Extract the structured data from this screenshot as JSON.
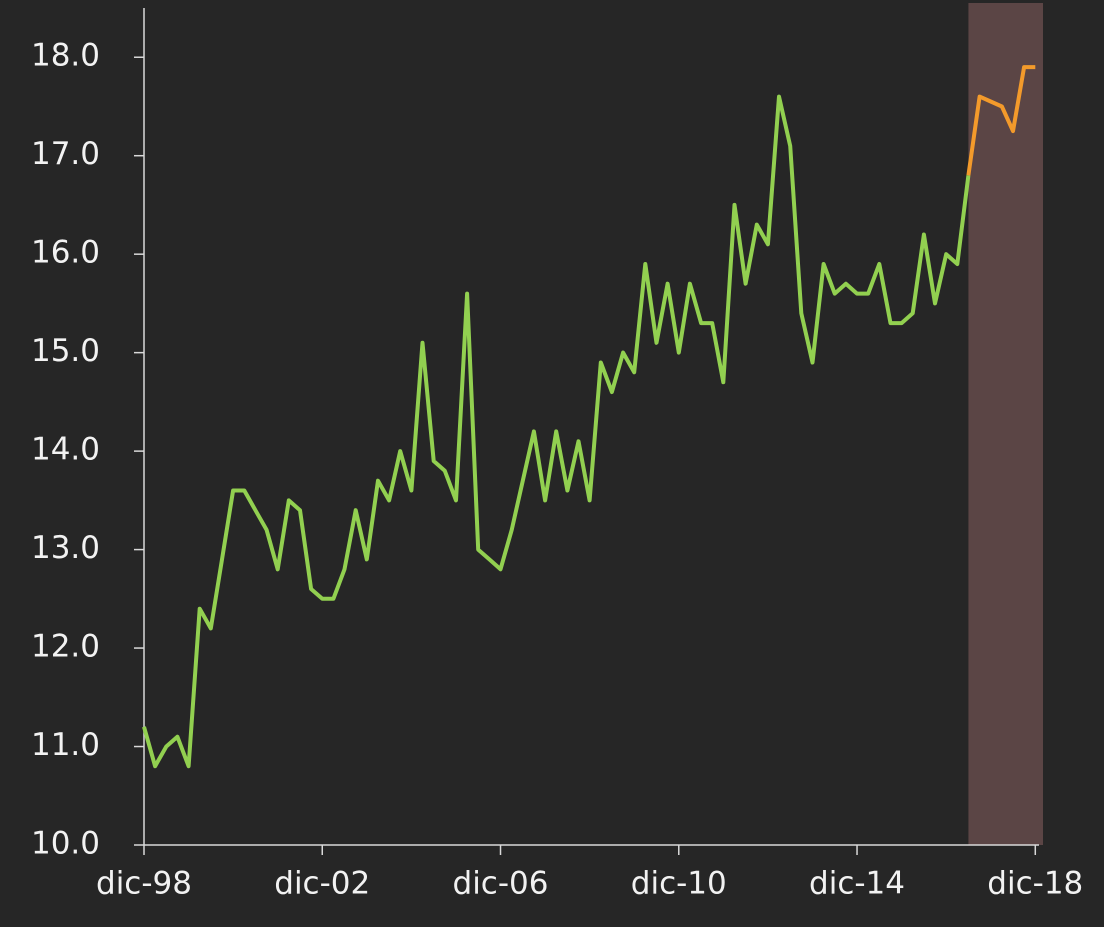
{
  "chart_data": {
    "type": "line",
    "xlim": [
      "1998-12",
      "2019-01"
    ],
    "xticks": [
      {
        "value": "1998-12",
        "label": "dic-98"
      },
      {
        "value": "2002-12",
        "label": "dic-02"
      },
      {
        "value": "2006-12",
        "label": "dic-06"
      },
      {
        "value": "2010-12",
        "label": "dic-10"
      },
      {
        "value": "2014-12",
        "label": "dic-14"
      },
      {
        "value": "2018-12",
        "label": "dic-18"
      }
    ],
    "ylim": [
      10,
      18.5
    ],
    "yticks": [
      {
        "value": 10,
        "label": "10.0"
      },
      {
        "value": 11,
        "label": "11.0"
      },
      {
        "value": 12,
        "label": "12.0"
      },
      {
        "value": 13,
        "label": "13.0"
      },
      {
        "value": 14,
        "label": "14.0"
      },
      {
        "value": 15,
        "label": "15.0"
      },
      {
        "value": 16,
        "label": "16.0"
      },
      {
        "value": 17,
        "label": "17.0"
      },
      {
        "value": 18,
        "label": "18.0"
      }
    ],
    "highlight": {
      "from": "2017-06",
      "to": "2019-01",
      "color": "#5b4545"
    },
    "series": [
      {
        "color": "#92d050",
        "x": [
          "1998-12",
          "1999-03",
          "1999-06",
          "1999-09",
          "1999-12",
          "2000-03",
          "2000-06",
          "2000-09",
          "2000-12",
          "2001-03",
          "2001-06",
          "2001-09",
          "2001-12",
          "2002-03",
          "2002-06",
          "2002-09",
          "2002-12",
          "2003-03",
          "2003-06",
          "2003-09",
          "2003-12",
          "2004-03",
          "2004-06",
          "2004-09",
          "2004-12",
          "2005-03",
          "2005-06",
          "2005-09",
          "2005-12",
          "2006-03",
          "2006-06",
          "2006-09",
          "2006-12",
          "2007-03",
          "2007-06",
          "2007-09",
          "2007-12",
          "2008-03",
          "2008-06",
          "2008-09",
          "2008-12",
          "2009-03",
          "2009-06",
          "2009-09",
          "2009-12",
          "2010-03",
          "2010-06",
          "2010-09",
          "2010-12",
          "2011-03",
          "2011-06",
          "2011-09",
          "2011-12",
          "2012-03",
          "2012-06",
          "2012-09",
          "2012-12",
          "2013-03",
          "2013-06",
          "2013-09",
          "2013-12",
          "2014-03",
          "2014-06",
          "2014-09",
          "2014-12",
          "2015-03",
          "2015-06",
          "2015-09",
          "2015-12",
          "2016-03",
          "2016-06",
          "2016-09",
          "2016-12",
          "2017-03",
          "2017-06"
        ],
        "values": [
          11.2,
          10.8,
          11.0,
          11.1,
          10.8,
          12.4,
          12.2,
          12.9,
          13.6,
          13.6,
          13.4,
          13.2,
          12.8,
          13.5,
          13.4,
          12.6,
          12.5,
          12.5,
          12.8,
          13.4,
          12.9,
          13.7,
          13.5,
          14.0,
          13.6,
          15.1,
          13.9,
          13.8,
          13.5,
          15.6,
          13.0,
          12.9,
          12.8,
          13.2,
          13.7,
          14.2,
          13.5,
          14.2,
          13.6,
          14.1,
          13.5,
          14.9,
          14.6,
          15.0,
          14.8,
          15.9,
          15.1,
          15.7,
          15.0,
          15.7,
          15.3,
          15.3,
          14.7,
          16.5,
          15.7,
          16.3,
          16.1,
          17.6,
          17.1,
          15.4,
          14.9,
          15.9,
          15.6,
          15.7,
          15.6,
          15.6,
          15.9,
          15.3,
          15.3,
          15.4,
          16.2,
          15.5,
          16.0,
          15.9,
          16.8
        ]
      },
      {
        "color": "#f39a2b",
        "x": [
          "2017-06",
          "2017-09",
          "2017-12",
          "2018-03",
          "2018-06",
          "2018-09",
          "2018-12"
        ],
        "values": [
          16.8,
          17.6,
          17.55,
          17.5,
          17.25,
          17.9,
          17.9
        ]
      }
    ]
  }
}
